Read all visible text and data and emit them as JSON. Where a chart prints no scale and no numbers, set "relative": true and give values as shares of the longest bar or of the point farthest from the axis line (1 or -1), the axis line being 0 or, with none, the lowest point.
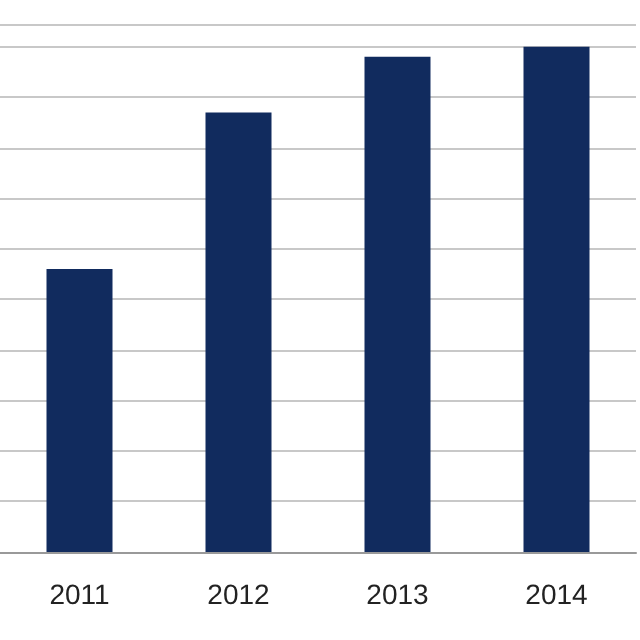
{
  "chart_data": {
    "type": "bar",
    "relative": true,
    "categories": [
      "2011",
      "2012",
      "2013",
      "2014"
    ],
    "values": [
      0.56,
      0.87,
      0.98,
      1
    ],
    "color": "#112b5e",
    "grid": "y"
  }
}
